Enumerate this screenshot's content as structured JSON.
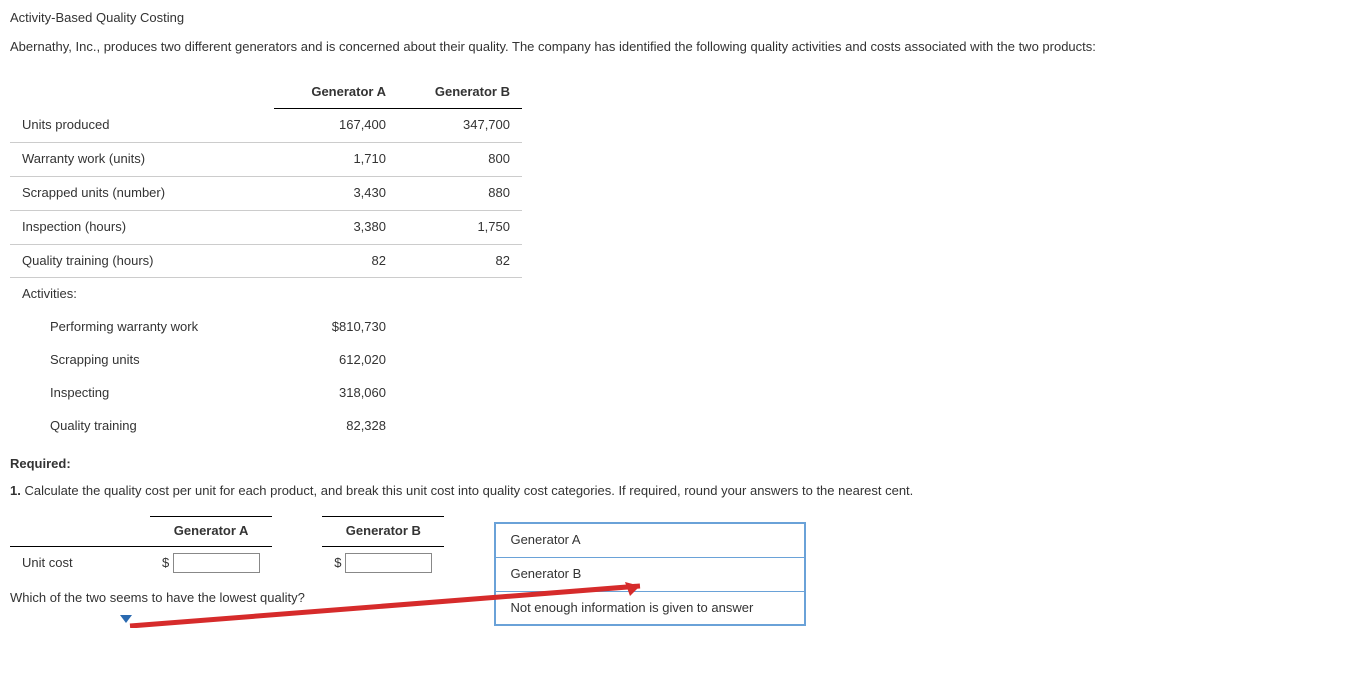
{
  "title": "Activity-Based Quality Costing",
  "intro": "Abernathy, Inc., produces two different generators and is concerned about their quality. The company has identified the following quality activities and costs associated with the two products:",
  "table1": {
    "col_a": "Generator A",
    "col_b": "Generator B",
    "rows": [
      {
        "label": "Units produced",
        "a": "167,400",
        "b": "347,700"
      },
      {
        "label": "Warranty work (units)",
        "a": "1,710",
        "b": "800"
      },
      {
        "label": "Scrapped units (number)",
        "a": "3,430",
        "b": "880"
      },
      {
        "label": "Inspection (hours)",
        "a": "3,380",
        "b": "1,750"
      },
      {
        "label": "Quality training (hours)",
        "a": "82",
        "b": "82"
      }
    ],
    "activities_label": "Activities:",
    "activities": [
      {
        "label": "Performing warranty work",
        "a": "$810,730"
      },
      {
        "label": "Scrapping units",
        "a": "612,020"
      },
      {
        "label": "Inspecting",
        "a": "318,060"
      },
      {
        "label": "Quality training",
        "a": "82,328"
      }
    ]
  },
  "required_label": "Required:",
  "q1": "1. Calculate the quality cost per unit for each product, and break this unit cost into quality cost categories. If required, round your answers to the nearest cent.",
  "answer_table": {
    "col_a": "Generator A",
    "col_b": "Generator B",
    "row_label": "Unit cost",
    "dollar": "$"
  },
  "q_which": "Which of the two seems to have the lowest quality?",
  "dropdown": {
    "opt1": "Generator A",
    "opt2": "Generator B",
    "opt3": "Not enough information is given to answer"
  },
  "arrow_color": "#d62b2b"
}
